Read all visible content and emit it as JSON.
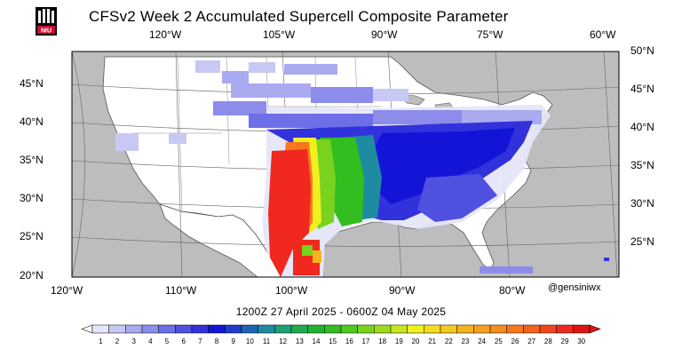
{
  "title": "CFSv2 Week 2 Accumulated Supercell Composite Parameter",
  "logo_text": "NIU",
  "period": "1200Z 27  April  2025  - 0600Z 04  May  2025",
  "credit": "@gensiniwx",
  "top_longitude_labels": [
    "120°W",
    "105°W",
    "90°W",
    "75°W",
    "60°W"
  ],
  "bottom_longitude_labels": [
    "120°W",
    "110°W",
    "100°W",
    "90°W",
    "80°W"
  ],
  "left_latitude_labels": [
    "45°N",
    "40°N",
    "35°N",
    "30°N",
    "25°N",
    "20°N"
  ],
  "right_latitude_labels": [
    "50°N",
    "45°N",
    "40°N",
    "35°N",
    "30°N",
    "25°N"
  ],
  "colorbar": {
    "ticks": [
      "1",
      "2",
      "3",
      "4",
      "5",
      "6",
      "7",
      "8",
      "9",
      "10",
      "11",
      "12",
      "13",
      "14",
      "15",
      "16",
      "17",
      "18",
      "19",
      "20",
      "21",
      "22",
      "23",
      "24",
      "25",
      "26",
      "27",
      "28",
      "29",
      "30"
    ],
    "colors": [
      "#e6e6fa",
      "#c8c8f5",
      "#aaaaf0",
      "#8c8ceb",
      "#6e6ee6",
      "#5050e1",
      "#3232dc",
      "#1414d7",
      "#1e3cc8",
      "#1e64b4",
      "#1e8ca0",
      "#1ea078",
      "#1eaa50",
      "#1eb432",
      "#32be1e",
      "#50c81e",
      "#78d21e",
      "#a0dc1e",
      "#c8e61e",
      "#f0f01e",
      "#f5dc1e",
      "#f5c81e",
      "#f5b41e",
      "#f5a01e",
      "#f58c1e",
      "#f5781e",
      "#f0641e",
      "#f0461e",
      "#f0281e",
      "#dc1414"
    ]
  }
}
